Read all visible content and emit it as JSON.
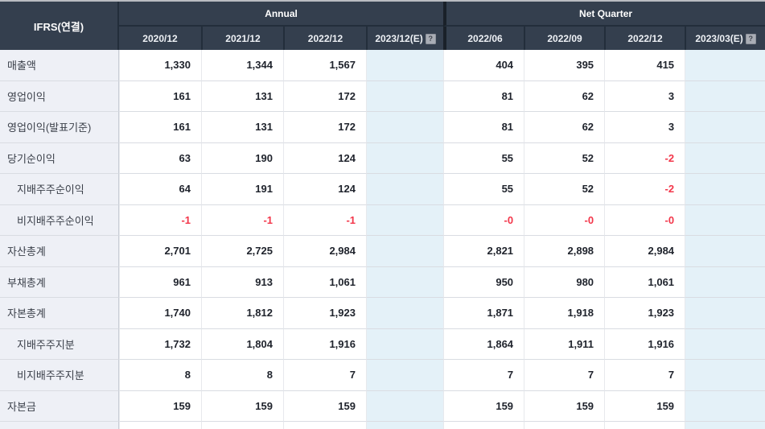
{
  "table": {
    "corner_label": "IFRS(연결)",
    "help_icon": "?",
    "groups": [
      {
        "label": "Annual",
        "columns": [
          "2020/12",
          "2021/12",
          "2022/12",
          "2023/12(E)"
        ]
      },
      {
        "label": "Net Quarter",
        "columns": [
          "2022/06",
          "2022/09",
          "2022/12",
          "2023/03(E)"
        ]
      }
    ],
    "rows": [
      {
        "label": "매출액",
        "indent": false,
        "annual": [
          "1,330",
          "1,344",
          "1,567",
          ""
        ],
        "quarter": [
          "404",
          "395",
          "415",
          ""
        ]
      },
      {
        "label": "영업이익",
        "indent": false,
        "annual": [
          "161",
          "131",
          "172",
          ""
        ],
        "quarter": [
          "81",
          "62",
          "3",
          ""
        ]
      },
      {
        "label": "영업이익(발표기준)",
        "indent": false,
        "annual": [
          "161",
          "131",
          "172",
          ""
        ],
        "quarter": [
          "81",
          "62",
          "3",
          ""
        ]
      },
      {
        "label": "당기순이익",
        "indent": false,
        "annual": [
          "63",
          "190",
          "124",
          ""
        ],
        "quarter": [
          "55",
          "52",
          "-2",
          ""
        ]
      },
      {
        "label": "지배주주순이익",
        "indent": true,
        "annual": [
          "64",
          "191",
          "124",
          ""
        ],
        "quarter": [
          "55",
          "52",
          "-2",
          ""
        ]
      },
      {
        "label": "비지배주주순이익",
        "indent": true,
        "annual": [
          "-1",
          "-1",
          "-1",
          ""
        ],
        "quarter": [
          "-0",
          "-0",
          "-0",
          ""
        ]
      },
      {
        "label": "자산총계",
        "indent": false,
        "annual": [
          "2,701",
          "2,725",
          "2,984",
          ""
        ],
        "quarter": [
          "2,821",
          "2,898",
          "2,984",
          ""
        ]
      },
      {
        "label": "부채총계",
        "indent": false,
        "annual": [
          "961",
          "913",
          "1,061",
          ""
        ],
        "quarter": [
          "950",
          "980",
          "1,061",
          ""
        ]
      },
      {
        "label": "자본총계",
        "indent": false,
        "annual": [
          "1,740",
          "1,812",
          "1,923",
          ""
        ],
        "quarter": [
          "1,871",
          "1,918",
          "1,923",
          ""
        ]
      },
      {
        "label": "지배주주지분",
        "indent": true,
        "annual": [
          "1,732",
          "1,804",
          "1,916",
          ""
        ],
        "quarter": [
          "1,864",
          "1,911",
          "1,916",
          ""
        ]
      },
      {
        "label": "비지배주주지분",
        "indent": true,
        "annual": [
          "8",
          "8",
          "7",
          ""
        ],
        "quarter": [
          "7",
          "7",
          "7",
          ""
        ]
      },
      {
        "label": "자본금",
        "indent": false,
        "annual": [
          "159",
          "159",
          "159",
          ""
        ],
        "quarter": [
          "159",
          "159",
          "159",
          ""
        ]
      }
    ],
    "colors": {
      "header_bg": "#343f4e",
      "header_divider": "#232e3b",
      "group_divider": "#1a2129",
      "label_bg": "#eef0f6",
      "estimate_bg": "#e4f1f8",
      "negative": "#f3364a",
      "row_border": "#d9dce2"
    }
  }
}
